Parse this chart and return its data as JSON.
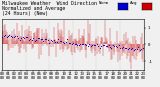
{
  "title": "Milwaukee Weather  Wind Direction\nNormalized and Average\n(24 Hours) (New)",
  "bg_color": "#f0f0f0",
  "plot_bg_color": "#f0f0f0",
  "grid_color": "#aaaaaa",
  "red_color": "#cc0000",
  "blue_color": "#0000cc",
  "n_points": 288,
  "y_min": -1.5,
  "y_max": 1.5,
  "y_ticks": [
    1.0,
    0.0,
    -1.0
  ],
  "y_tick_labels": [
    "1",
    "0",
    "-1"
  ],
  "legend_blue_label": "Norm",
  "legend_red_label": "Avg",
  "title_fontsize": 3.8,
  "tick_fontsize": 3.0
}
